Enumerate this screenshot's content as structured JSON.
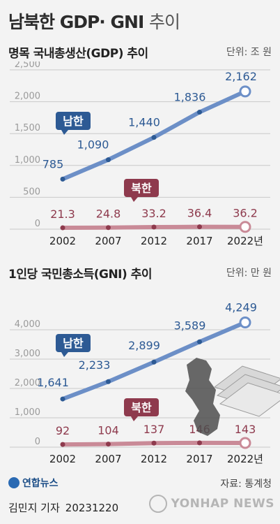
{
  "header": {
    "title_bold": "남북한 GDP· GNI",
    "title_light": "추이"
  },
  "panels": [
    {
      "title": "명목 국내총생산(GDP) 추이",
      "unit": "단위: 조 원"
    },
    {
      "title": "1인당 국민총소득(GNI) 추이",
      "unit": "단위: 만 원"
    }
  ],
  "colors": {
    "south": "#6c8fc7",
    "south_dark": "#2d5a94",
    "north": "#c98a97",
    "north_dark": "#8e3a4d",
    "grid": "#c9c9c9",
    "axis_text": "#9a9a9a"
  },
  "chart_data": [
    {
      "type": "line",
      "title": "명목 국내총생산(GDP) 추이",
      "unit": "조 원",
      "categories": [
        "2002",
        "2007",
        "2012",
        "2017",
        "2022년"
      ],
      "ylim": [
        0,
        2500
      ],
      "yticks": [
        "0",
        "500",
        "1,000",
        "1,500",
        "2,000",
        "2,500"
      ],
      "grid": true,
      "series": [
        {
          "name": "남한",
          "values": [
            785,
            1090,
            1440,
            1836,
            2162
          ],
          "labels": [
            "785",
            "1,090",
            "1,440",
            "1,836",
            "2,162"
          ]
        },
        {
          "name": "북한",
          "values": [
            21.3,
            24.8,
            33.2,
            36.4,
            36.2
          ],
          "labels": [
            "21.3",
            "24.8",
            "33.2",
            "36.4",
            "36.2"
          ]
        }
      ]
    },
    {
      "type": "line",
      "title": "1인당 국민총소득(GNI) 추이",
      "unit": "만 원",
      "categories": [
        "2002",
        "2007",
        "2012",
        "2017",
        "2022년"
      ],
      "ylim": [
        0,
        5000
      ],
      "yticks": [
        "0",
        "1,000",
        "2,000",
        "3,000",
        "4,000"
      ],
      "grid": true,
      "series": [
        {
          "name": "남한",
          "values": [
            1641,
            2233,
            2899,
            3589,
            4249
          ],
          "labels": [
            "1,641",
            "2,233",
            "2,899",
            "3,589",
            "4,249"
          ]
        },
        {
          "name": "북한",
          "values": [
            92,
            104,
            137,
            146,
            143
          ],
          "labels": [
            "92",
            "104",
            "137",
            "146",
            "143"
          ]
        }
      ]
    }
  ],
  "footer": {
    "logo": "연합뉴스",
    "source": "자료: 통계청",
    "author": "김민지 기자",
    "date": "20231220",
    "watermark": "YONHAP NEWS"
  }
}
